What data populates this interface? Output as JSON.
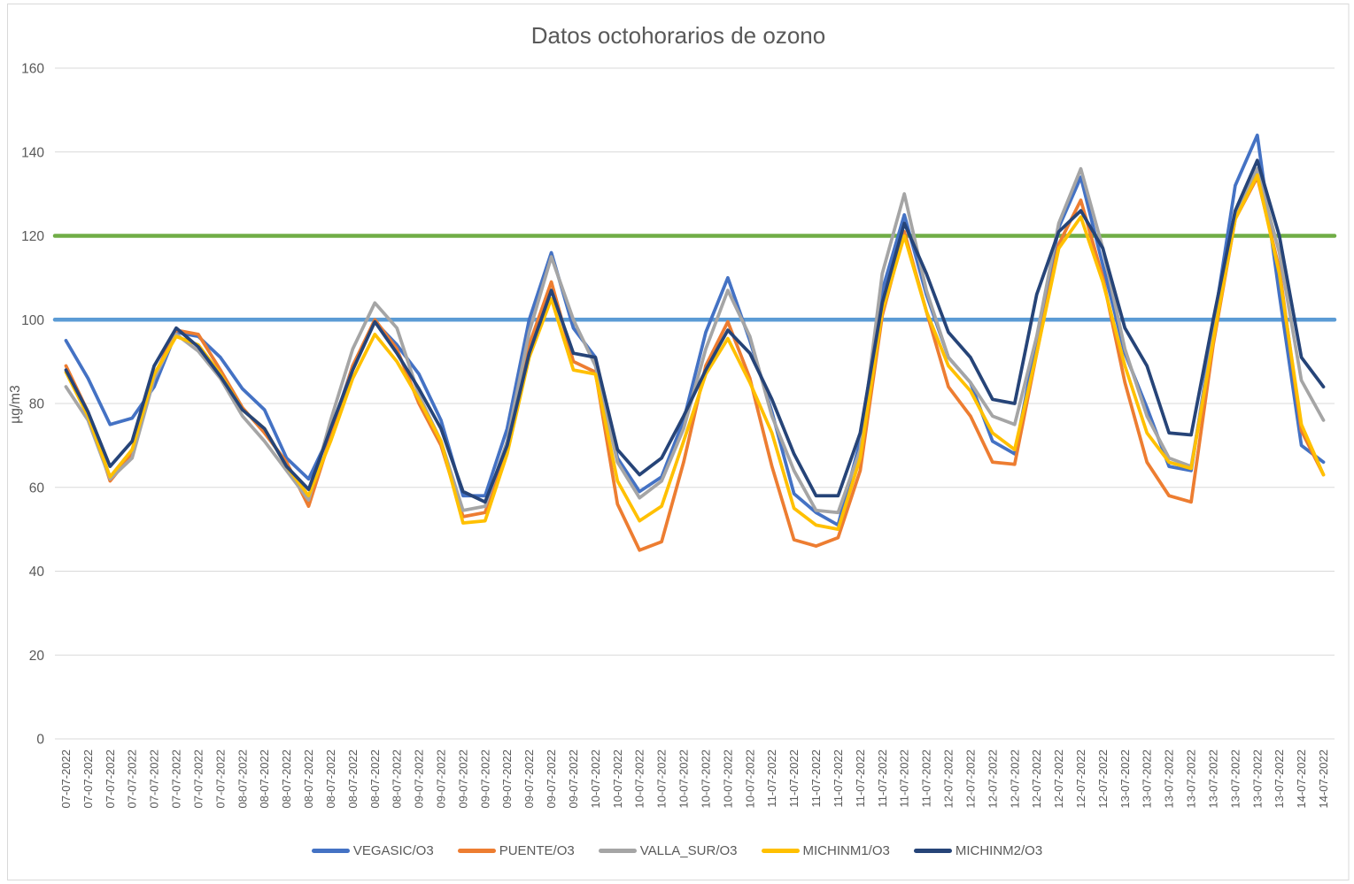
{
  "chart_data": {
    "type": "line",
    "title": "Datos octohorarios de ozono",
    "ylabel": "µg/m3",
    "xlabel": "",
    "ylim": [
      0,
      160
    ],
    "yticks": [
      0,
      20,
      40,
      60,
      80,
      100,
      120,
      140,
      160
    ],
    "grid": true,
    "legend_position": "bottom",
    "colors": {
      "title": "#595959",
      "axis_labels": "#595959",
      "gridline": "#D9D9D9",
      "chart_border": "#D9D9D9",
      "background": "#FFFFFF"
    },
    "categories": [
      "07-07-2022",
      "07-07-2022",
      "07-07-2022",
      "07-07-2022",
      "07-07-2022",
      "07-07-2022",
      "07-07-2022",
      "07-07-2022",
      "08-07-2022",
      "08-07-2022",
      "08-07-2022",
      "08-07-2022",
      "08-07-2022",
      "08-07-2022",
      "08-07-2022",
      "08-07-2022",
      "09-07-2022",
      "09-07-2022",
      "09-07-2022",
      "09-07-2022",
      "09-07-2022",
      "09-07-2022",
      "09-07-2022",
      "09-07-2022",
      "10-07-2022",
      "10-07-2022",
      "10-07-2022",
      "10-07-2022",
      "10-07-2022",
      "10-07-2022",
      "10-07-2022",
      "10-07-2022",
      "11-07-2022",
      "11-07-2022",
      "11-07-2022",
      "11-07-2022",
      "11-07-2022",
      "11-07-2022",
      "11-07-2022",
      "11-07-2022",
      "12-07-2022",
      "12-07-2022",
      "12-07-2022",
      "12-07-2022",
      "12-07-2022",
      "12-07-2022",
      "12-07-2022",
      "12-07-2022",
      "13-07-2022",
      "13-07-2022",
      "13-07-2022",
      "13-07-2022",
      "13-07-2022",
      "13-07-2022",
      "13-07-2022",
      "13-07-2022",
      "14-07-2022",
      "14-07-2022"
    ],
    "series": [
      {
        "name": "VEGASIC/O3",
        "color": "#4472C4",
        "values": [
          95,
          86,
          75,
          76.5,
          84,
          97,
          96,
          91,
          83.5,
          78.5,
          67,
          62,
          73,
          89,
          99.5,
          94,
          87,
          76,
          58,
          58,
          74,
          100,
          116,
          98,
          91,
          67,
          59,
          62.5,
          76,
          97,
          110,
          95,
          78,
          58.5,
          54,
          51,
          71,
          107,
          125,
          106,
          91,
          85,
          71,
          68,
          95,
          122,
          134,
          113,
          92,
          79,
          65,
          64,
          98,
          132,
          144,
          106,
          70,
          66
        ]
      },
      {
        "name": "PUENTE/O3",
        "color": "#ED7D31",
        "values": [
          89,
          78,
          61.5,
          68,
          86.5,
          97.5,
          96.5,
          88,
          79,
          73,
          66,
          55.5,
          72,
          89,
          100,
          93,
          80,
          70,
          53,
          54,
          69,
          94,
          109,
          90,
          87.5,
          56,
          45,
          47,
          66,
          89,
          99.5,
          86,
          65,
          47.5,
          46,
          48,
          64,
          101,
          121,
          102,
          84,
          77,
          66,
          65.5,
          92,
          118,
          128.5,
          110,
          85,
          66,
          58,
          56.5,
          94,
          124,
          134,
          112,
          73.5,
          63
        ]
      },
      {
        "name": "VALLA_SUR/O3",
        "color": "#A5A5A5",
        "values": [
          84,
          76,
          62,
          67,
          86,
          96.5,
          92.5,
          86,
          77,
          71,
          64,
          57,
          76,
          93,
          104,
          98,
          82,
          71,
          54.5,
          55.5,
          71,
          97,
          115,
          100,
          89,
          66,
          57.5,
          61.5,
          74,
          93,
          107,
          96,
          77,
          64,
          54.5,
          54,
          69,
          111,
          130,
          107,
          91,
          85,
          77,
          75,
          96,
          123,
          136,
          117,
          93,
          77,
          67,
          65,
          96,
          125,
          136,
          116,
          85.5,
          76
        ]
      },
      {
        "name": "MICHINM1/O3",
        "color": "#FFC000",
        "values": [
          87.5,
          77,
          62.5,
          69,
          87,
          96,
          94,
          87,
          78.5,
          74,
          65,
          58,
          71,
          86,
          96.5,
          90,
          81,
          71,
          51.5,
          52,
          68,
          91,
          105,
          88,
          87,
          61.5,
          52,
          55.5,
          71,
          87,
          95.5,
          85,
          73,
          55,
          51,
          50,
          67,
          102,
          120,
          102,
          89,
          83,
          73,
          69,
          92,
          117,
          124.5,
          109,
          89,
          73,
          66,
          64.5,
          95,
          124,
          134.5,
          111,
          75,
          63
        ]
      },
      {
        "name": "MICHINM2/O3",
        "color": "#264478",
        "values": [
          88,
          78,
          65,
          71,
          89,
          98,
          93.5,
          86.5,
          78.5,
          74,
          65,
          59.5,
          74,
          88,
          99.5,
          92,
          83.5,
          74,
          59,
          56.5,
          70,
          92,
          107,
          92,
          91,
          69,
          63,
          67,
          77,
          88,
          97.5,
          92,
          81,
          68,
          58,
          58,
          73,
          104,
          123,
          111,
          97,
          91,
          81,
          80,
          106,
          121,
          126,
          117,
          98,
          89,
          73,
          72.5,
          100,
          126,
          138,
          120,
          91,
          84
        ]
      }
    ],
    "reference_lines": [
      {
        "value": 120,
        "color": "#70AD47"
      },
      {
        "value": 100,
        "color": "#5B9BD5"
      }
    ]
  }
}
